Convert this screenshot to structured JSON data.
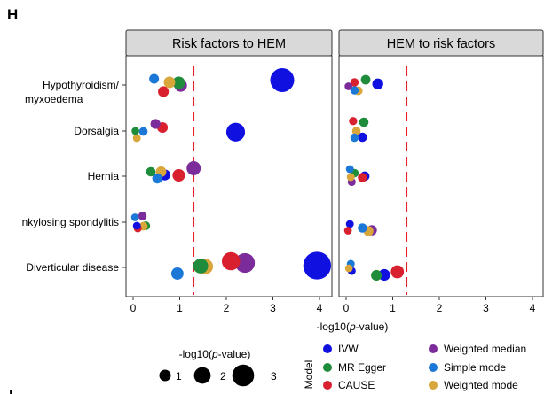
{
  "figure": {
    "panel_letter": "H",
    "next_panel_letter": "I"
  },
  "chart_data": {
    "type": "scatter",
    "title": "",
    "xlabel": "-log10(p-value)",
    "x_ticks": [
      0,
      1,
      2,
      3,
      4
    ],
    "xlim": [
      -0.1,
      4.0
    ],
    "threshold": 1.3,
    "threshold_color": "#e8202a",
    "categories": [
      "Hypothyroidism/ myxoedema",
      "Dorsalgia",
      "Hernia",
      "Ankylosing spondylitis",
      "Diverticular disease"
    ],
    "category_labels": [
      [
        "Hypothyroidism/",
        "myxoedema"
      ],
      [
        "Dorsalgia"
      ],
      [
        "Hernia"
      ],
      [
        "nkylosing spondylitis"
      ],
      [
        "Diverticular disease"
      ]
    ],
    "models": [
      {
        "name": "IVW",
        "color": "#1010e0"
      },
      {
        "name": "MR Egger",
        "color": "#1f8c3b"
      },
      {
        "name": "CAUSE",
        "color": "#d8202e"
      },
      {
        "name": "Weighted median",
        "color": "#7b2c9a"
      },
      {
        "name": "Simple mode",
        "color": "#1b78d6"
      },
      {
        "name": "Weighted mode",
        "color": "#d9a63c"
      }
    ],
    "size_legend": {
      "title": "-log10(p-value)",
      "values": [
        1,
        2,
        3
      ]
    },
    "color_legend_title": "Model",
    "facets": [
      {
        "label": "Risk factors to HEM",
        "points": [
          {
            "cat": 0,
            "model": "Simple mode",
            "x": 0.45,
            "y": -0.28
          },
          {
            "cat": 0,
            "model": "Weighted mode",
            "x": 0.78,
            "y": -0.12
          },
          {
            "cat": 0,
            "model": "MR Egger",
            "x": 0.98,
            "y": -0.1
          },
          {
            "cat": 0,
            "model": "Weighted median",
            "x": 1.02,
            "y": 0.02
          },
          {
            "cat": 0,
            "model": "IVW",
            "x": 3.2,
            "y": -0.22
          },
          {
            "cat": 0,
            "model": "CAUSE",
            "x": 0.65,
            "y": 0.3
          },
          {
            "cat": 1,
            "model": "Weighted median",
            "x": 0.48,
            "y": -0.32
          },
          {
            "cat": 1,
            "model": "CAUSE",
            "x": 0.63,
            "y": -0.16
          },
          {
            "cat": 1,
            "model": "MR Egger",
            "x": 0.05,
            "y": 0.0
          },
          {
            "cat": 1,
            "model": "Simple mode",
            "x": 0.22,
            "y": 0.02
          },
          {
            "cat": 1,
            "model": "IVW",
            "x": 2.2,
            "y": 0.05
          },
          {
            "cat": 1,
            "model": "Weighted mode",
            "x": 0.08,
            "y": 0.32
          },
          {
            "cat": 2,
            "model": "Weighted median",
            "x": 1.3,
            "y": -0.36
          },
          {
            "cat": 2,
            "model": "MR Egger",
            "x": 0.38,
            "y": -0.2
          },
          {
            "cat": 2,
            "model": "IVW",
            "x": 0.68,
            "y": -0.06
          },
          {
            "cat": 2,
            "model": "Weighted mode",
            "x": 0.6,
            "y": -0.2
          },
          {
            "cat": 2,
            "model": "CAUSE",
            "x": 0.98,
            "y": -0.04
          },
          {
            "cat": 2,
            "model": "Simple mode",
            "x": 0.52,
            "y": 0.1
          },
          {
            "cat": 3,
            "model": "Simple mode",
            "x": 0.04,
            "y": -0.22
          },
          {
            "cat": 3,
            "model": "Weighted median",
            "x": 0.2,
            "y": -0.28
          },
          {
            "cat": 3,
            "model": "IVW",
            "x": 0.08,
            "y": 0.16
          },
          {
            "cat": 3,
            "model": "MR Egger",
            "x": 0.27,
            "y": 0.16
          },
          {
            "cat": 3,
            "model": "Weighted mode",
            "x": 0.22,
            "y": 0.18
          },
          {
            "cat": 3,
            "model": "CAUSE",
            "x": 0.1,
            "y": 0.28
          },
          {
            "cat": 4,
            "model": "IVW",
            "x": 3.95,
            "y": -0.08
          },
          {
            "cat": 4,
            "model": "CAUSE",
            "x": 2.1,
            "y": -0.28
          },
          {
            "cat": 4,
            "model": "Weighted median",
            "x": 2.4,
            "y": -0.2
          },
          {
            "cat": 4,
            "model": "MR Egger",
            "x": 1.45,
            "y": -0.06
          },
          {
            "cat": 4,
            "model": "Weighted mode",
            "x": 1.55,
            "y": -0.04
          },
          {
            "cat": 4,
            "model": "Simple mode",
            "x": 0.95,
            "y": 0.28
          }
        ]
      },
      {
        "label": "HEM to risk factors",
        "points": [
          {
            "cat": 0,
            "model": "MR Egger",
            "x": 0.42,
            "y": -0.24
          },
          {
            "cat": 0,
            "model": "CAUSE",
            "x": 0.18,
            "y": -0.12
          },
          {
            "cat": 0,
            "model": "IVW",
            "x": 0.68,
            "y": -0.05
          },
          {
            "cat": 0,
            "model": "Weighted median",
            "x": 0.05,
            "y": 0.06
          },
          {
            "cat": 0,
            "model": "Simple mode",
            "x": 0.18,
            "y": 0.24
          },
          {
            "cat": 0,
            "model": "Weighted mode",
            "x": 0.26,
            "y": 0.26
          },
          {
            "cat": 1,
            "model": "CAUSE",
            "x": 0.15,
            "y": -0.45
          },
          {
            "cat": 1,
            "model": "MR Egger",
            "x": 0.38,
            "y": -0.4
          },
          {
            "cat": 1,
            "model": "Weighted mode",
            "x": 0.22,
            "y": 0.0
          },
          {
            "cat": 1,
            "model": "Simple mode",
            "x": 0.18,
            "y": 0.3
          },
          {
            "cat": 1,
            "model": "IVW",
            "x": 0.35,
            "y": 0.28
          },
          {
            "cat": 2,
            "model": "Simple mode",
            "x": 0.08,
            "y": -0.32
          },
          {
            "cat": 2,
            "model": "MR Egger",
            "x": 0.18,
            "y": -0.14
          },
          {
            "cat": 2,
            "model": "IVW",
            "x": 0.4,
            "y": 0.0
          },
          {
            "cat": 2,
            "model": "Weighted mode",
            "x": 0.1,
            "y": 0.04
          },
          {
            "cat": 2,
            "model": "CAUSE",
            "x": 0.35,
            "y": 0.06
          },
          {
            "cat": 2,
            "model": "Weighted median",
            "x": 0.12,
            "y": 0.26
          },
          {
            "cat": 3,
            "model": "IVW",
            "x": 0.08,
            "y": 0.08
          },
          {
            "cat": 3,
            "model": "CAUSE",
            "x": 0.04,
            "y": 0.38
          },
          {
            "cat": 3,
            "model": "Simple mode",
            "x": 0.35,
            "y": 0.26
          },
          {
            "cat": 3,
            "model": "Weighted median",
            "x": 0.55,
            "y": 0.36
          },
          {
            "cat": 3,
            "model": "Weighted mode",
            "x": 0.48,
            "y": 0.4
          },
          {
            "cat": 4,
            "model": "Simple mode",
            "x": 0.1,
            "y": -0.16
          },
          {
            "cat": 4,
            "model": "Weighted mode",
            "x": 0.06,
            "y": 0.04
          },
          {
            "cat": 4,
            "model": "IVW",
            "x": 0.12,
            "y": 0.16
          },
          {
            "cat": 4,
            "model": "CAUSE",
            "x": 1.1,
            "y": 0.2
          },
          {
            "cat": 4,
            "model": "IVW",
            "x": 0.82,
            "y": 0.34
          },
          {
            "cat": 4,
            "model": "MR Egger",
            "x": 0.65,
            "y": 0.36
          }
        ]
      }
    ]
  }
}
